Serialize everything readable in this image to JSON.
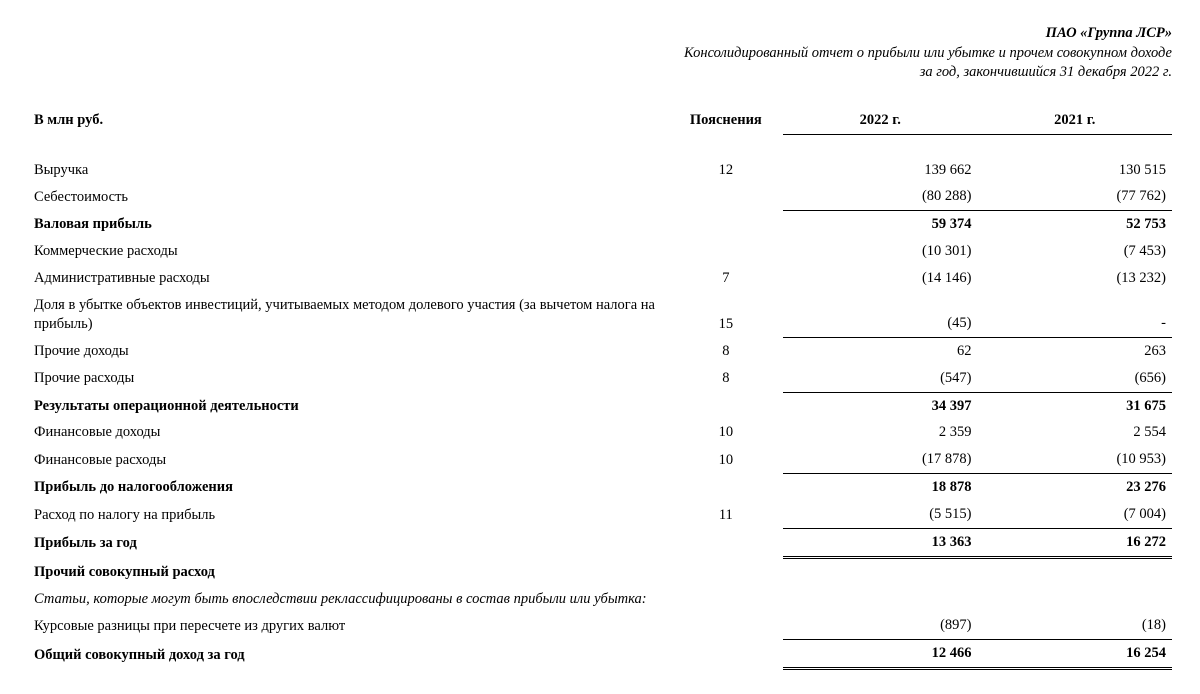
{
  "header": {
    "company": "ПАО «Группа ЛСР»",
    "report_title": "Консолидированный отчет о прибыли или убытке и прочем совокупном доходе",
    "period": "за год, закончившийся 31 декабря 2022 г."
  },
  "columns": {
    "units": "В млн руб.",
    "notes": "Пояснения",
    "year1": "2022 г.",
    "year2": "2021 г."
  },
  "rows": {
    "revenue": {
      "label": "Выручка",
      "note": "12",
      "y1": "139 662",
      "y2": "130 515"
    },
    "cost": {
      "label": "Себестоимость",
      "note": "",
      "y1": "(80 288)",
      "y2": "(77 762)"
    },
    "gross": {
      "label": "Валовая прибыль",
      "note": "",
      "y1": "59 374",
      "y2": "52 753"
    },
    "selling": {
      "label": "Коммерческие расходы",
      "note": "",
      "y1": "(10 301)",
      "y2": "(7 453)"
    },
    "admin": {
      "label": "Административные расходы",
      "note": "7",
      "y1": "(14 146)",
      "y2": "(13 232)"
    },
    "equity_loss": {
      "label": "Доля в убытке объектов инвестиций, учитываемых методом долевого участия (за вычетом налога на прибыль)",
      "note": "15",
      "y1": "(45)",
      "y2": "-"
    },
    "other_income": {
      "label": "Прочие доходы",
      "note": "8",
      "y1": "62",
      "y2": "263"
    },
    "other_expense": {
      "label": "Прочие расходы",
      "note": "8",
      "y1": "(547)",
      "y2": "(656)"
    },
    "operating": {
      "label": "Результаты операционной деятельности",
      "note": "",
      "y1": "34 397",
      "y2": "31 675"
    },
    "fin_income": {
      "label": "Финансовые доходы",
      "note": "10",
      "y1": "2 359",
      "y2": "2 554"
    },
    "fin_expense": {
      "label": "Финансовые расходы",
      "note": "10",
      "y1": "(17 878)",
      "y2": "(10 953)"
    },
    "pbt": {
      "label": "Прибыль до налогообложения",
      "note": "",
      "y1": "18 878",
      "y2": "23 276"
    },
    "tax": {
      "label": "Расход по налогу на прибыль",
      "note": "11",
      "y1": "(5 515)",
      "y2": "(7 004)"
    },
    "profit": {
      "label": "Прибыль за год",
      "note": "",
      "y1": "13 363",
      "y2": "16 272"
    },
    "oci_head": {
      "label": "Прочий совокупный расход"
    },
    "oci_note": {
      "label": "Статьи, которые могут быть впоследствии реклассифицированы в состав прибыли или убытка:"
    },
    "fx": {
      "label": "Курсовые разницы при пересчете из других валют",
      "note": "",
      "y1": "(897)",
      "y2": "(18)"
    },
    "tci": {
      "label": "Общий совокупный доход за год",
      "note": "",
      "y1": "12 466",
      "y2": "16 254"
    }
  }
}
